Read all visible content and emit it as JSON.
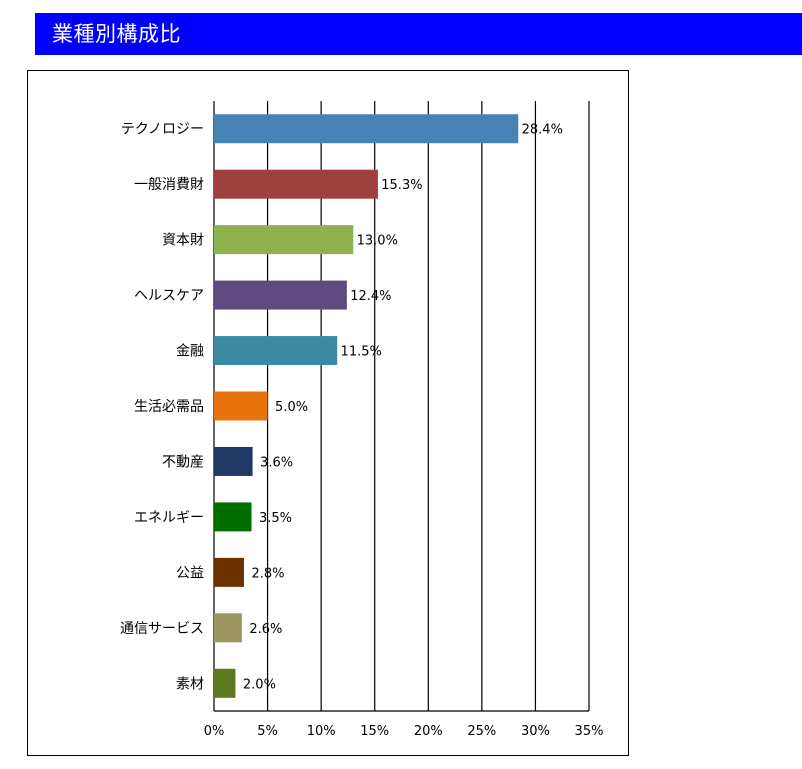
{
  "header": {
    "title": "業種別構成比",
    "background": "#0000ff",
    "color": "#ffffff"
  },
  "chart_data": {
    "type": "bar",
    "orientation": "horizontal",
    "categories": [
      "テクノロジー",
      "一般消費財",
      "資本財",
      "ヘルスケア",
      "金融",
      "生活必需品",
      "不動産",
      "エネルギー",
      "公益",
      "通信サービス",
      "素材"
    ],
    "values": [
      28.4,
      15.3,
      13.0,
      12.4,
      11.5,
      5.0,
      3.6,
      3.5,
      2.8,
      2.6,
      2.0
    ],
    "value_labels": [
      "28.4%",
      "15.3%",
      "13.0%",
      "12.4%",
      "11.5%",
      "5.0%",
      "3.6%",
      "3.5%",
      "2.8%",
      "2.6%",
      "2.0%"
    ],
    "colors": [
      "#4682b4",
      "#a0403e",
      "#8db24f",
      "#5d4b7f",
      "#3a8aa3",
      "#e8720c",
      "#1f3864",
      "#006f00",
      "#6b3200",
      "#9b9560",
      "#5b7a1e"
    ],
    "xlim": [
      0,
      35
    ],
    "xticks": [
      0,
      5,
      10,
      15,
      20,
      25,
      30,
      35
    ],
    "xtick_labels": [
      "0%",
      "5%",
      "10%",
      "15%",
      "20%",
      "25%",
      "30%",
      "35%"
    ],
    "grid": true,
    "title": "",
    "xlabel": "",
    "ylabel": ""
  }
}
